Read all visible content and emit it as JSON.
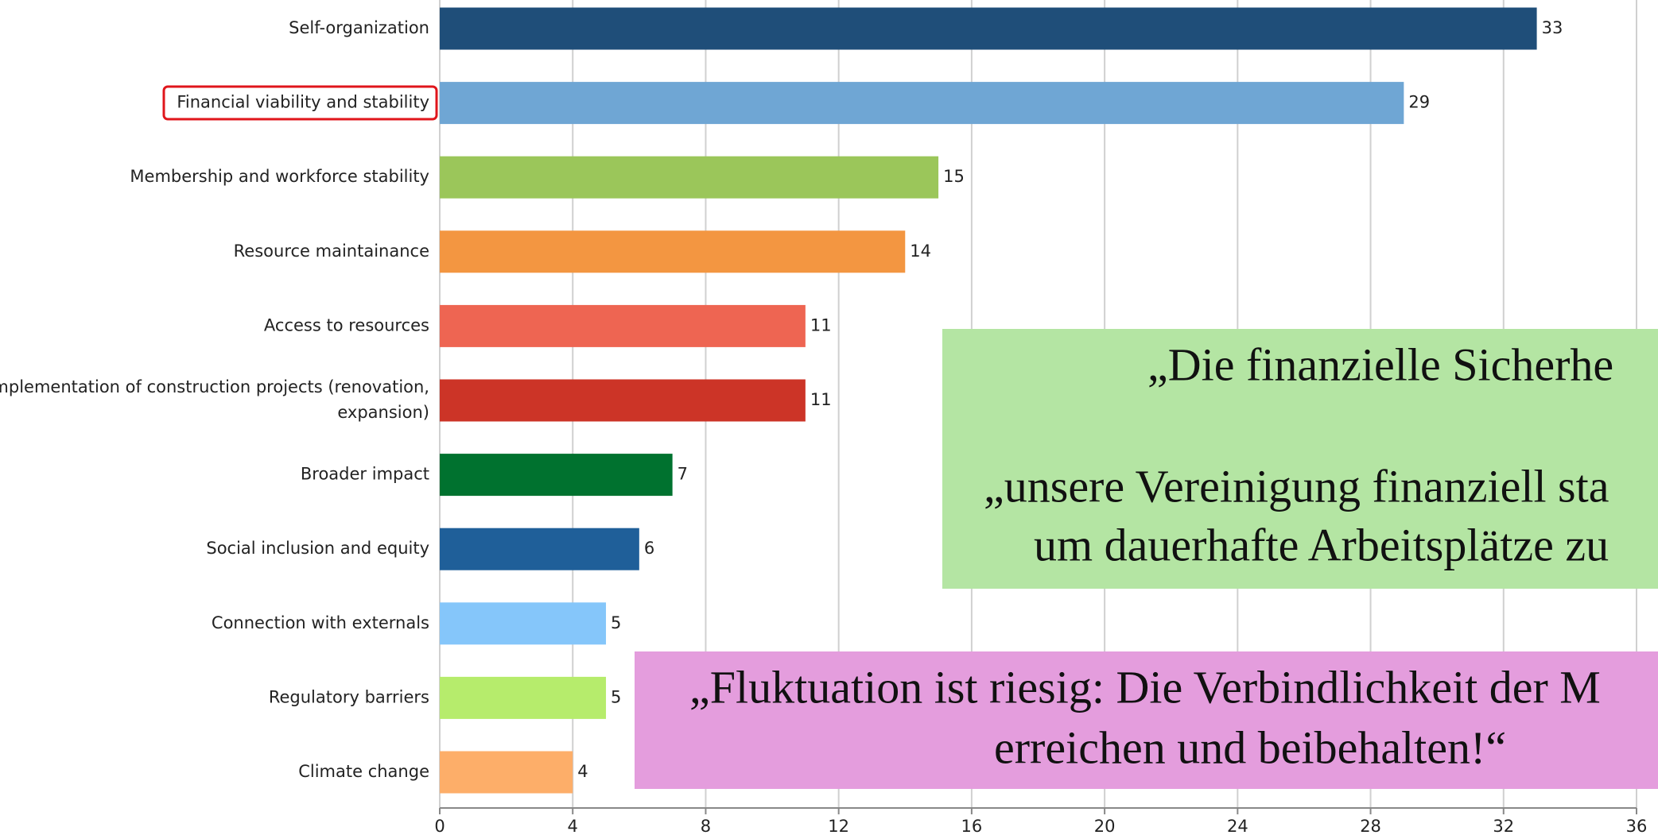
{
  "chart_data": {
    "type": "barh",
    "categories": [
      "Self-organization",
      "Financial viability and stability",
      "Membership and workforce stability",
      "Resource maintainance",
      "Access to resources",
      "Implementation of construction projects (renovation,\nexpansion)",
      "Broader impact",
      "Social inclusion and equity",
      "Connection with externals",
      "Regulatory barriers",
      "Climate change"
    ],
    "values": [
      33,
      29,
      15,
      14,
      11,
      11,
      7,
      6,
      5,
      5,
      4
    ],
    "colors": [
      "#1f4e79",
      "#6fa6d4",
      "#9bc65a",
      "#f39641",
      "#ee6552",
      "#cc3427",
      "#00722f",
      "#1f5f99",
      "#85c6fa",
      "#b6ec6c",
      "#fdae69"
    ],
    "xlim": [
      0,
      36
    ],
    "xticks": [
      0,
      4,
      8,
      12,
      16,
      20,
      24,
      28,
      32,
      36
    ],
    "grid": true,
    "annotations": [
      [
        "„Die finanzielle Sicherhe",
        "„unsere Vereinigung finanziell sta",
        "um dauerhafte Arbeitsplätze zu"
      ],
      [
        "„Fluktuation ist riesig: Die Verbindlichkeit der M",
        "erreichen und beibehalten!“"
      ]
    ]
  }
}
